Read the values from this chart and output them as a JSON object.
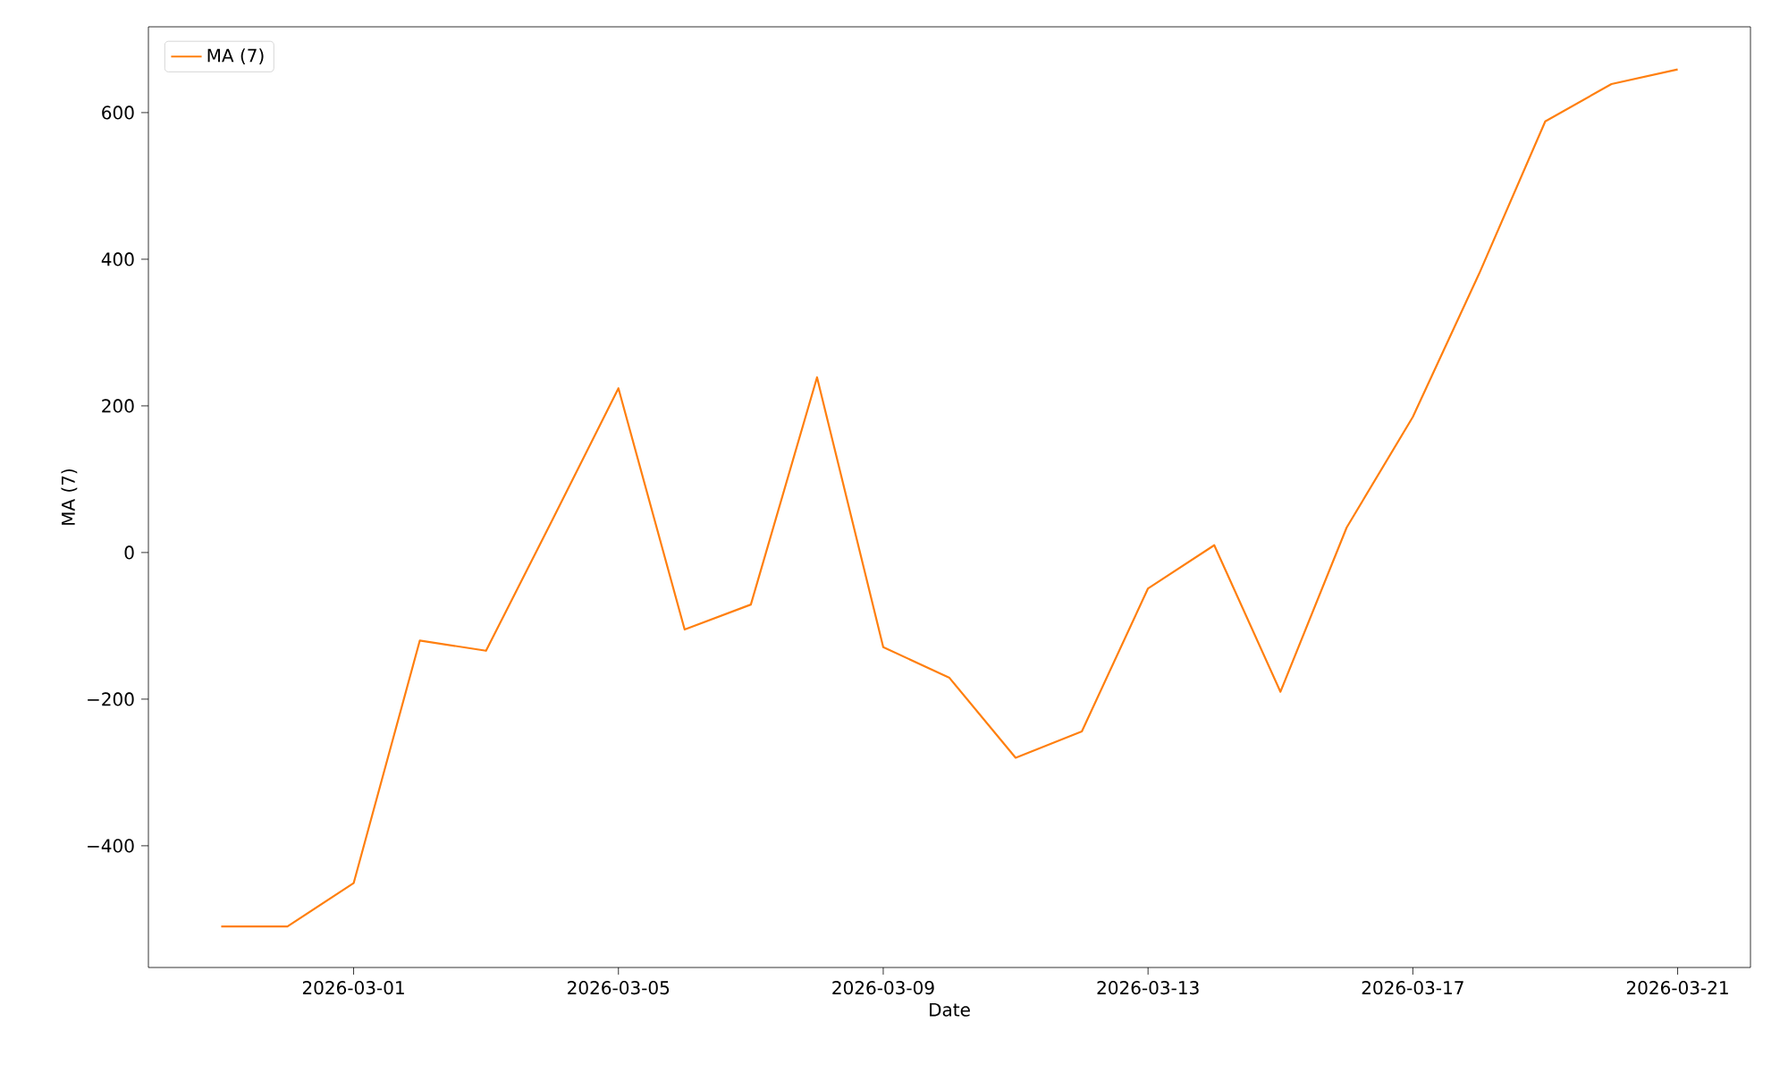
{
  "chart_data": {
    "type": "line",
    "xlabel": "Date",
    "ylabel": "MA (7)",
    "x": [
      "2026-02-27",
      "2026-02-28",
      "2026-03-01",
      "2026-03-02",
      "2026-03-03",
      "2026-03-04",
      "2026-03-05",
      "2026-03-06",
      "2026-03-07",
      "2026-03-08",
      "2026-03-09",
      "2026-03-10",
      "2026-03-11",
      "2026-03-12",
      "2026-03-13",
      "2026-03-14",
      "2026-03-15",
      "2026-03-16",
      "2026-03-17",
      "2026-03-18",
      "2026-03-19",
      "2026-03-20",
      "2026-03-21"
    ],
    "series": [
      {
        "name": "MA (7)",
        "color": "#ff7f0e",
        "values": [
          -510,
          -510,
          -451,
          -120,
          -134,
          44,
          224,
          -105,
          -71,
          239,
          -129,
          -171,
          -280,
          -244,
          -49,
          10,
          -190,
          34,
          185,
          380,
          588,
          639,
          659
        ]
      }
    ],
    "xlim": [
      "2026-02-25T21:36",
      "2026-03-22T02:24"
    ],
    "ylim": [
      -566,
      717
    ],
    "xticks": [
      "2026-03-01",
      "2026-03-05",
      "2026-03-09",
      "2026-03-13",
      "2026-03-17",
      "2026-03-21"
    ],
    "yticks": [
      {
        "value": -400,
        "label": "−400"
      },
      {
        "value": -200,
        "label": "−200"
      },
      0,
      200,
      400,
      600
    ],
    "legend": "top left",
    "grid": false,
    "line_style": "solid"
  }
}
